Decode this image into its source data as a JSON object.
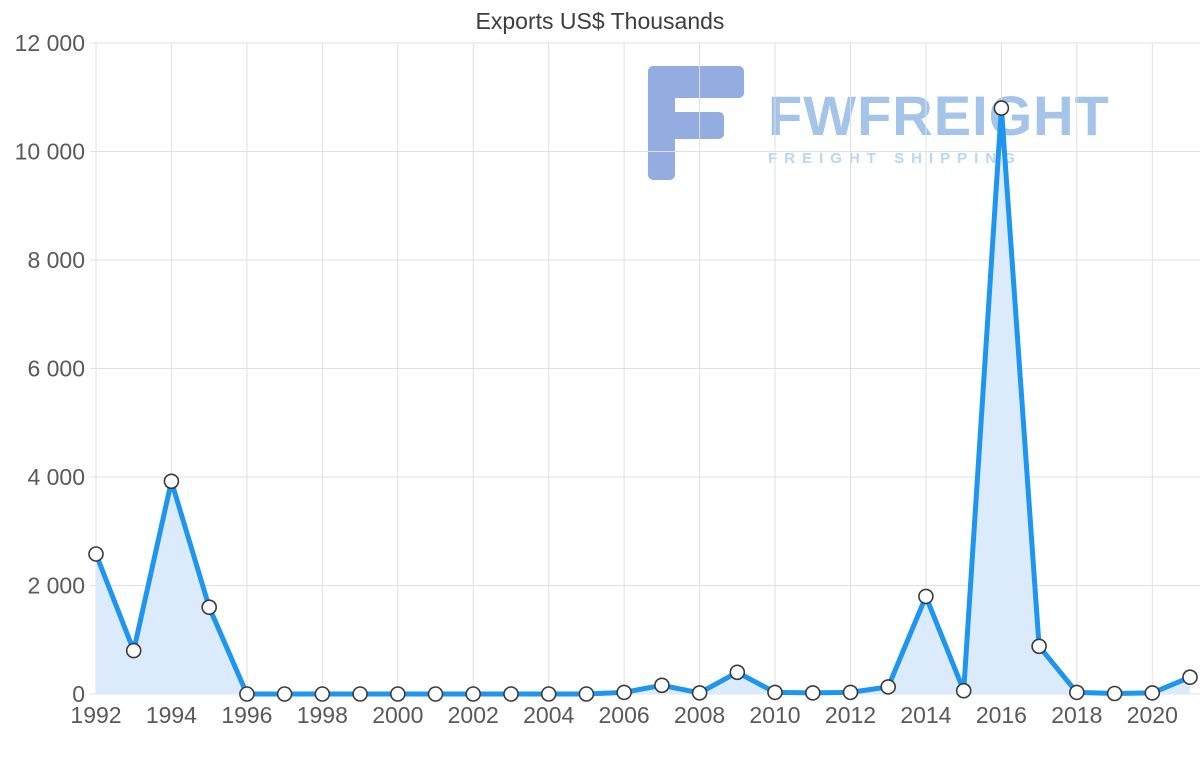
{
  "chart_data": {
    "type": "area",
    "title": "Exports US$ Thousands",
    "xlabel": "",
    "ylabel": "",
    "x": [
      1992,
      1993,
      1994,
      1995,
      1996,
      1997,
      1998,
      1999,
      2000,
      2001,
      2002,
      2003,
      2004,
      2005,
      2006,
      2007,
      2008,
      2009,
      2010,
      2011,
      2012,
      2013,
      2014,
      2015,
      2016,
      2017,
      2018,
      2019,
      2020,
      2021
    ],
    "values": [
      2580,
      800,
      3920,
      1600,
      0,
      0,
      0,
      0,
      0,
      0,
      0,
      0,
      0,
      0,
      30,
      160,
      20,
      400,
      30,
      20,
      30,
      130,
      1800,
      60,
      10800,
      880,
      30,
      10,
      20,
      310
    ],
    "ylim": [
      0,
      12000
    ],
    "yticks": [
      {
        "value": 0,
        "label": "0"
      },
      {
        "value": 2000,
        "label": "2 000"
      },
      {
        "value": 4000,
        "label": "4 000"
      },
      {
        "value": 6000,
        "label": "6 000"
      },
      {
        "value": 8000,
        "label": "8 000"
      },
      {
        "value": 10000,
        "label": "10 000"
      },
      {
        "value": 12000,
        "label": "12 000"
      }
    ],
    "xticks": [
      {
        "value": 1992,
        "label": "1992"
      },
      {
        "value": 1994,
        "label": "1994"
      },
      {
        "value": 1996,
        "label": "1996"
      },
      {
        "value": 1998,
        "label": "1998"
      },
      {
        "value": 2000,
        "label": "2000"
      },
      {
        "value": 2002,
        "label": "2002"
      },
      {
        "value": 2004,
        "label": "2004"
      },
      {
        "value": 2006,
        "label": "2006"
      },
      {
        "value": 2008,
        "label": "2008"
      },
      {
        "value": 2010,
        "label": "2010"
      },
      {
        "value": 2012,
        "label": "2012"
      },
      {
        "value": 2014,
        "label": "2014"
      },
      {
        "value": 2016,
        "label": "2016"
      },
      {
        "value": 2018,
        "label": "2018"
      },
      {
        "value": 2020,
        "label": "2020"
      }
    ],
    "grid": true,
    "legend_position": "none",
    "colors": {
      "line": "#1e96f0",
      "area_fill": "#dcebfb",
      "marker_fill": "#ffffff",
      "marker_stroke": "#3a3a3a",
      "grid": "#e0e0e0",
      "axis_text": "#595959",
      "title_text": "#3d3d3d"
    }
  },
  "watermark": {
    "brand": "FWFREIGHT",
    "tagline": "FREIGHT SHIPPING",
    "logo_icon": "fwfreight-f-logo",
    "colors": {
      "brand": "#a4c4ea",
      "tagline": "#b7d8f5",
      "logo": "#93ade1"
    }
  }
}
